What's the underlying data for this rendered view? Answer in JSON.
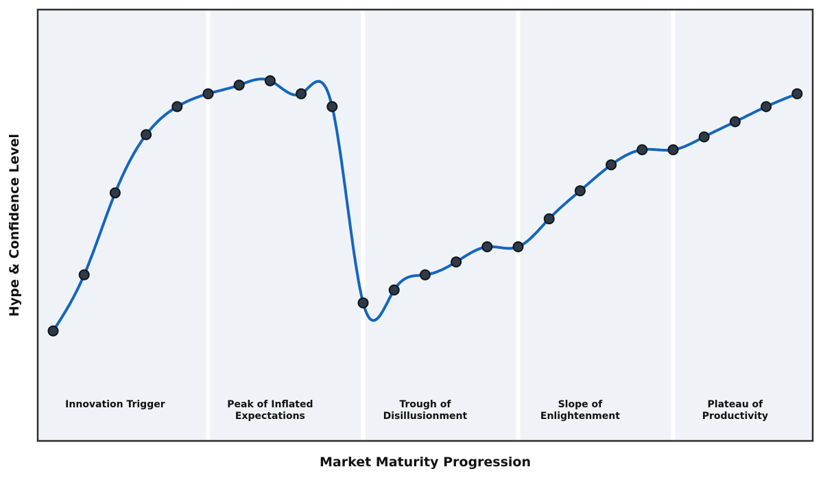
{
  "chart_data": {
    "type": "line",
    "title": "",
    "xlabel": "Market Maturity Progression",
    "ylabel": "Hype & Confidence Level",
    "x": [
      0,
      1,
      2,
      3,
      4,
      5,
      6,
      7,
      8,
      9,
      10,
      11,
      12,
      13,
      14,
      15,
      16,
      17,
      18,
      19,
      20,
      21,
      22,
      23,
      24
    ],
    "series": [
      {
        "name": "Hype & Confidence",
        "values": [
          25.5,
          38.5,
          57.5,
          71,
          77.5,
          80.5,
          82.5,
          83.5,
          80.5,
          77.5,
          32,
          35,
          38.5,
          41.5,
          45,
          45,
          51.5,
          58,
          64,
          67.5,
          67.5,
          70.5,
          74,
          77.5,
          80.5
        ]
      }
    ],
    "ylim": [
      0,
      100
    ],
    "xlim": [
      0,
      24
    ],
    "grid": false,
    "legend": false,
    "smoothing": "cubic-spline",
    "axis_ticks_visible": false,
    "phases": [
      {
        "name": "Innovation Trigger",
        "lines": [
          "Innovation Trigger"
        ],
        "center_index": 2
      },
      {
        "name": "Peak of Inflated Expectations",
        "lines": [
          "Peak of Inflated",
          "Expectations"
        ],
        "center_index": 7
      },
      {
        "name": "Trough of Disillusionment",
        "lines": [
          "Trough of",
          "Disillusionment"
        ],
        "center_index": 12
      },
      {
        "name": "Slope of Enlightenment",
        "lines": [
          "Slope of",
          "Enlightenment"
        ],
        "center_index": 17
      },
      {
        "name": "Plateau of Productivity",
        "lines": [
          "Plateau of",
          "Productivity"
        ],
        "center_index": 22
      }
    ],
    "phase_boundary_indices": [
      5,
      10,
      15,
      20
    ],
    "colors": {
      "line": "#1565c0",
      "marker_fill": "#2e3a47",
      "marker_edge": "#0f1419",
      "plot_background": "#eff3f7",
      "phase_band": "#ffffff",
      "spine": "#2e2e2e",
      "figure_background": "#ffffff",
      "text": "#111111"
    }
  }
}
